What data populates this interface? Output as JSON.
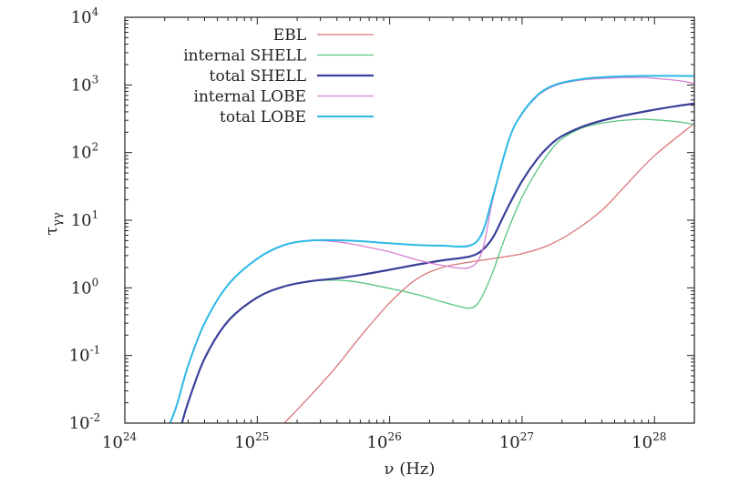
{
  "chart_data": {
    "type": "line",
    "title": "",
    "xlabel": "ν (Hz)",
    "ylabel": "τ",
    "ylabel_subscript": "γγ",
    "x_scale": "log",
    "y_scale": "log",
    "xlim": [
      1e+24,
      2e+28
    ],
    "ylim": [
      0.01,
      10000
    ],
    "grid": false,
    "legend_position": "top-left",
    "x_ticks": [
      {
        "base": "10",
        "exp": "24",
        "value": 1e+24
      },
      {
        "base": "10",
        "exp": "25",
        "value": 1e+25
      },
      {
        "base": "10",
        "exp": "26",
        "value": 1e+26
      },
      {
        "base": "10",
        "exp": "27",
        "value": 1e+27
      },
      {
        "base": "10",
        "exp": "28",
        "value": 1e+28
      }
    ],
    "y_ticks": [
      {
        "base": "10",
        "exp": "-2",
        "value": 0.01
      },
      {
        "base": "10",
        "exp": "-1",
        "value": 0.1
      },
      {
        "base": "10",
        "exp": "0",
        "value": 1
      },
      {
        "base": "10",
        "exp": "1",
        "value": 10
      },
      {
        "base": "10",
        "exp": "2",
        "value": 100
      },
      {
        "base": "10",
        "exp": "3",
        "value": 1000
      },
      {
        "base": "10",
        "exp": "4",
        "value": 10000
      }
    ],
    "series": [
      {
        "name": "EBL",
        "color": "#d9777a",
        "width": 1.3,
        "x": [
          1.6e+25,
          2.5e+25,
          4e+25,
          6e+25,
          1e+26,
          1.6e+26,
          2.5e+26,
          4e+26,
          6e+26,
          1e+27,
          1.6e+27,
          2.5e+27,
          4e+27,
          6e+27,
          1e+28,
          2e+28
        ],
        "y": [
          0.01,
          0.025,
          0.07,
          0.19,
          0.6,
          1.35,
          2.0,
          2.4,
          2.7,
          3.2,
          4.3,
          7.0,
          14,
          32,
          90,
          270
        ]
      },
      {
        "name": "internal SHELL",
        "color": "#56c47f",
        "width": 1.3,
        "x": [
          2.7e+24,
          3e+24,
          4e+24,
          6e+24,
          1e+25,
          1.6e+25,
          2.5e+25,
          4e+25,
          6e+25,
          1e+26,
          1.6e+26,
          2.5e+26,
          3.5e+26,
          4e+26,
          4.5e+26,
          5e+26,
          6e+26,
          7e+26,
          8e+26,
          1e+27,
          1.3e+27,
          1.6e+27,
          2e+27,
          3e+27,
          5e+27,
          8e+27,
          1e+28,
          1.5e+28,
          2e+28
        ],
        "y": [
          0.01,
          0.02,
          0.09,
          0.32,
          0.72,
          1.05,
          1.25,
          1.3,
          1.2,
          0.98,
          0.8,
          0.62,
          0.52,
          0.5,
          0.55,
          0.75,
          1.7,
          4,
          8,
          22,
          55,
          100,
          160,
          240,
          290,
          310,
          305,
          285,
          260
        ]
      },
      {
        "name": "total SHELL",
        "color": "#3a3f99",
        "width": 2.2,
        "x": [
          2.7e+24,
          3e+24,
          4e+24,
          6e+24,
          1e+25,
          1.6e+25,
          2.5e+25,
          4e+25,
          6e+25,
          1e+26,
          1.6e+26,
          2.5e+26,
          4e+26,
          5e+26,
          6e+26,
          7e+26,
          8e+26,
          1e+27,
          1.3e+27,
          1.6e+27,
          2e+27,
          3e+27,
          5e+27,
          1e+28,
          1.5e+28,
          2e+28
        ],
        "y": [
          0.01,
          0.02,
          0.09,
          0.32,
          0.72,
          1.05,
          1.25,
          1.38,
          1.55,
          1.85,
          2.2,
          2.55,
          2.9,
          3.6,
          5.5,
          10,
          17,
          38,
          80,
          125,
          175,
          250,
          330,
          430,
          490,
          530
        ]
      },
      {
        "name": "internal LOBE",
        "color": "#d67fd1",
        "width": 1.3,
        "x": [
          2.2e+24,
          2.5e+24,
          3e+24,
          4e+24,
          6e+24,
          1e+25,
          1.6e+25,
          2.5e+25,
          4e+25,
          6e+25,
          1e+26,
          1.6e+26,
          2.5e+26,
          4e+26,
          5e+26,
          6e+26,
          8e+26,
          1e+27,
          1.3e+27,
          1.6e+27,
          2e+27,
          3e+27,
          5e+27,
          8e+27,
          1e+28,
          1.5e+28,
          2e+28
        ],
        "y": [
          0.01,
          0.02,
          0.07,
          0.3,
          1.1,
          2.7,
          4.3,
          5.0,
          4.8,
          4.2,
          3.4,
          2.6,
          2.15,
          2.0,
          3.5,
          20,
          160,
          370,
          680,
          890,
          1050,
          1200,
          1270,
          1290,
          1250,
          1160,
          1050
        ]
      },
      {
        "name": "total LOBE",
        "color": "#2cb8e6",
        "width": 2.0,
        "x": [
          2.2e+24,
          2.5e+24,
          3e+24,
          4e+24,
          6e+24,
          1e+25,
          1.6e+25,
          2.5e+25,
          4e+25,
          6e+25,
          1e+26,
          1.6e+26,
          2.5e+26,
          4e+26,
          5e+26,
          6e+26,
          8e+26,
          1e+27,
          1.3e+27,
          1.6e+27,
          2e+27,
          3e+27,
          5e+27,
          8e+27,
          1e+28,
          1.5e+28,
          2e+28
        ],
        "y": [
          0.01,
          0.02,
          0.07,
          0.3,
          1.1,
          2.7,
          4.3,
          5.0,
          5.05,
          4.9,
          4.55,
          4.3,
          4.2,
          4.2,
          6.5,
          22,
          160,
          380,
          700,
          920,
          1080,
          1240,
          1330,
          1360,
          1360,
          1360,
          1350
        ]
      }
    ]
  }
}
